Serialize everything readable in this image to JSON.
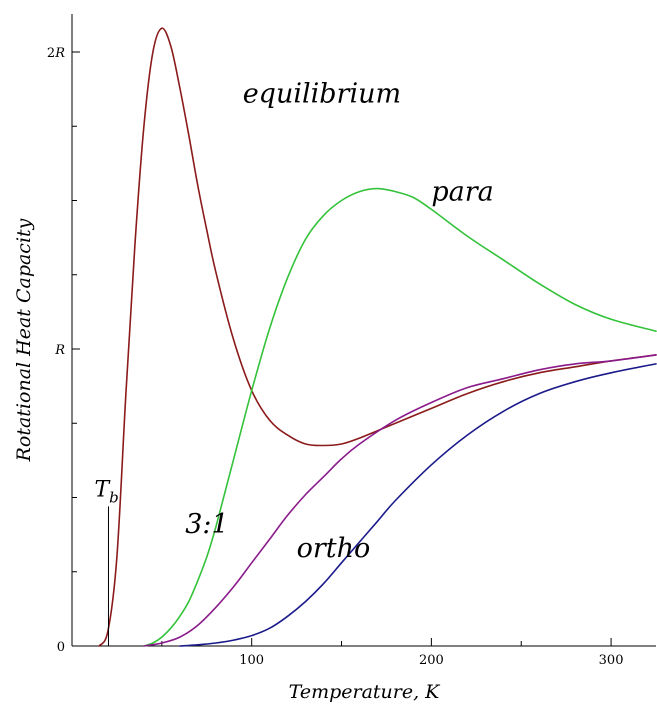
{
  "chart_data": {
    "type": "line",
    "title": "",
    "xlabel": "Temperature, K",
    "ylabel": "Rotational Heat Capacity",
    "xlim": [
      0,
      325
    ],
    "ylim": [
      0,
      2.1
    ],
    "grid": false,
    "legend": "none",
    "x_ticks": [
      {
        "value": 100,
        "label": "100"
      },
      {
        "value": 200,
        "label": "200"
      },
      {
        "value": 300,
        "label": "300"
      }
    ],
    "y_ticks": [
      {
        "value": 0,
        "label": "0"
      },
      {
        "value": 1,
        "label": "R"
      },
      {
        "value": 2,
        "label": "2R"
      }
    ],
    "x_minor_ticks": [
      50,
      150,
      250
    ],
    "y_minor_ticks": [
      0.25,
      0.5,
      0.75,
      1.25,
      1.5,
      1.75
    ],
    "series": [
      {
        "name": "equilibrium",
        "color": "#8b1a1a",
        "x": [
          15,
          20,
          25,
          30,
          35,
          40,
          45,
          50,
          55,
          60,
          65,
          70,
          75,
          80,
          90,
          100,
          110,
          120,
          130,
          140,
          150,
          160,
          180,
          200,
          220,
          240,
          260,
          280,
          300,
          325
        ],
        "y": [
          0.0,
          0.05,
          0.3,
          0.85,
          1.35,
          1.75,
          2.0,
          2.08,
          2.02,
          1.88,
          1.72,
          1.55,
          1.4,
          1.26,
          1.03,
          0.86,
          0.76,
          0.71,
          0.68,
          0.675,
          0.68,
          0.7,
          0.75,
          0.8,
          0.85,
          0.89,
          0.92,
          0.94,
          0.96,
          0.98
        ]
      },
      {
        "name": "para",
        "color": "#33c23a",
        "x": [
          40,
          45,
          50,
          55,
          60,
          65,
          70,
          75,
          80,
          90,
          100,
          110,
          120,
          130,
          140,
          150,
          160,
          170,
          180,
          190,
          200,
          220,
          240,
          260,
          280,
          300,
          325
        ],
        "y": [
          0.0,
          0.01,
          0.03,
          0.06,
          0.1,
          0.15,
          0.22,
          0.3,
          0.4,
          0.63,
          0.86,
          1.07,
          1.24,
          1.37,
          1.45,
          1.5,
          1.53,
          1.54,
          1.53,
          1.51,
          1.47,
          1.38,
          1.3,
          1.22,
          1.15,
          1.1,
          1.06
        ]
      },
      {
        "name": "3:1",
        "color": "#8b1a8b",
        "x": [
          40,
          50,
          60,
          70,
          80,
          90,
          100,
          110,
          120,
          130,
          140,
          150,
          160,
          180,
          200,
          220,
          240,
          260,
          280,
          300,
          325
        ],
        "y": [
          0.0,
          0.01,
          0.03,
          0.07,
          0.13,
          0.2,
          0.28,
          0.36,
          0.44,
          0.51,
          0.57,
          0.63,
          0.68,
          0.76,
          0.82,
          0.87,
          0.9,
          0.93,
          0.95,
          0.96,
          0.98
        ]
      },
      {
        "name": "ortho",
        "color": "#1a1a8b",
        "x": [
          60,
          70,
          80,
          90,
          100,
          110,
          120,
          130,
          140,
          150,
          160,
          170,
          180,
          200,
          220,
          240,
          260,
          280,
          300,
          325
        ],
        "y": [
          0.0,
          0.004,
          0.01,
          0.02,
          0.035,
          0.06,
          0.1,
          0.15,
          0.21,
          0.28,
          0.35,
          0.42,
          0.49,
          0.61,
          0.71,
          0.79,
          0.85,
          0.89,
          0.92,
          0.95
        ]
      }
    ],
    "annotations": [
      {
        "text": "equilibrium",
        "series": "equilibrium",
        "x": 95,
        "y": 1.83
      },
      {
        "text": "para",
        "series": "para",
        "x": 200,
        "y": 1.5
      },
      {
        "text": "3:1",
        "series": "3:1",
        "x": 63,
        "y": 0.38
      },
      {
        "text": "ortho",
        "series": "ortho",
        "x": 125,
        "y": 0.3
      }
    ],
    "marker": {
      "label": "T",
      "subscript": "b",
      "x": 20.3,
      "y_top": 0.47
    }
  }
}
